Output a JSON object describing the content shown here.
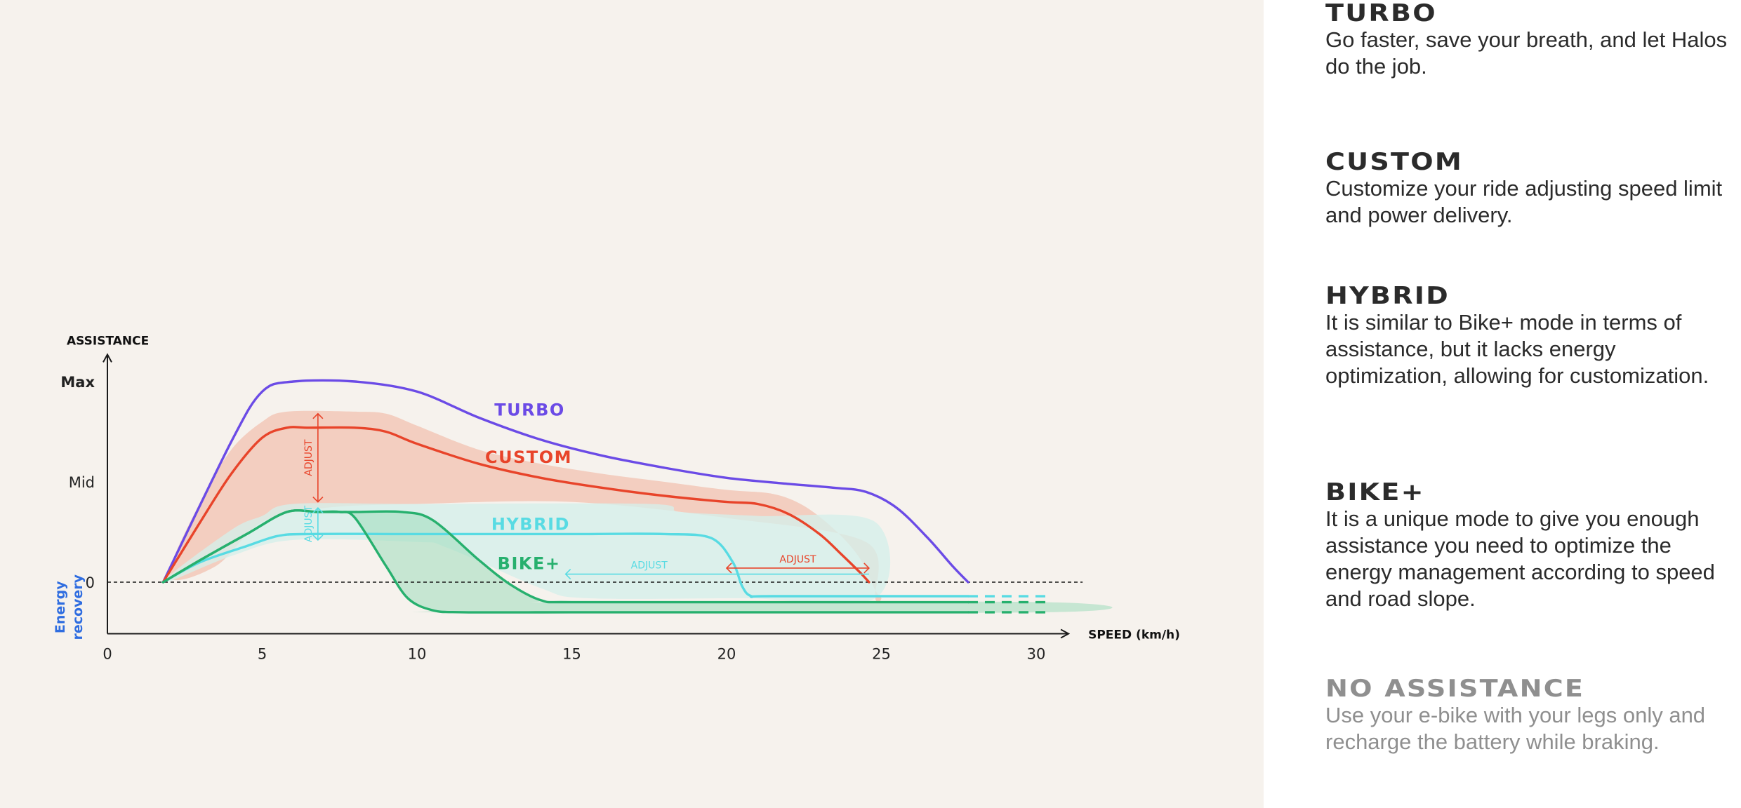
{
  "chart_data": {
    "type": "line",
    "title": "",
    "xlabel": "SPEED (km/h)",
    "ylabel": "ASSISTANCE",
    "xlim": [
      0,
      31
    ],
    "x_ticks": [
      0,
      5,
      10,
      15,
      20,
      25,
      30
    ],
    "x_tick_labels": [
      "0",
      "5",
      "10",
      "15",
      "20",
      "25",
      "30"
    ],
    "y_ticks": [
      {
        "label": "Max",
        "value": 100
      },
      {
        "label": "Mid",
        "value": 50
      },
      {
        "label": "0",
        "value": 0
      }
    ],
    "ylim": [
      -25,
      110
    ],
    "zero_line": "dashed",
    "energy_label_line1": "Energy",
    "energy_label_line2": "recovery",
    "colors": {
      "turbo": "#6b4be6",
      "custom": "#e8442a",
      "custom_band": "#f3c4b4",
      "hybrid": "#58dbe3",
      "hybrid_band": "#d5efeb",
      "bike_plus": "#27b06e",
      "bike_band": "#9fdcbc",
      "axis": "#1a1a1a",
      "energy": "#2f6de0"
    },
    "series": [
      {
        "name": "TURBO",
        "x": [
          1.8,
          4,
          5,
          6,
          8,
          10,
          12,
          14,
          16,
          18,
          20,
          22,
          23.5,
          24.5,
          25.5,
          26.5,
          27.3,
          27.8
        ],
        "y": [
          0,
          70,
          95,
          100,
          100,
          95,
          82,
          71,
          63,
          57,
          52,
          49,
          47,
          45,
          37,
          22,
          8,
          0
        ]
      },
      {
        "name": "CUSTOM",
        "x": [
          1.8,
          3,
          4,
          5,
          5.8,
          6.5,
          8,
          9,
          10,
          12,
          14,
          16,
          18,
          20,
          21,
          22,
          23,
          23.7,
          24.3,
          24.6
        ],
        "y": [
          0,
          30,
          54,
          72,
          77,
          77,
          77,
          75,
          69,
          59,
          52,
          47,
          43,
          40,
          39,
          34,
          24,
          14,
          5,
          0
        ]
      },
      {
        "name": "HYBRID",
        "x": [
          1.8,
          3,
          4.5,
          5.5,
          6.5,
          10,
          15,
          18,
          19.5,
          20.2,
          20.5,
          20.8,
          21.5,
          27.8
        ],
        "y": [
          0,
          10,
          18,
          23,
          24,
          24,
          24,
          24,
          22,
          10,
          -2,
          -7,
          -7,
          -7
        ]
      },
      {
        "name": "BIKE+ (upper)",
        "x": [
          1.8,
          3,
          4.5,
          5.8,
          6.8,
          8,
          9.5,
          10.5,
          12,
          13,
          14,
          15,
          20,
          27.8
        ],
        "y": [
          0,
          11,
          24,
          35,
          35,
          35,
          35,
          31,
          11,
          -1,
          -9,
          -10,
          -10,
          -10
        ]
      },
      {
        "name": "BIKE+ (lower)",
        "x": [
          1.8,
          3,
          4.5,
          5.8,
          6.8,
          7.5,
          8,
          9,
          9.7,
          10.5,
          11.5,
          15,
          20,
          27.8
        ],
        "y": [
          0,
          11,
          24,
          35,
          35,
          35,
          32,
          8,
          -8,
          -14,
          -15,
          -15,
          -15,
          -15
        ]
      }
    ],
    "series_labels": {
      "turbo": "TURBO",
      "custom": "CUSTOM",
      "hybrid": "HYBRID",
      "bike_plus": "BIKE+"
    },
    "bands": {
      "custom": {
        "x": [
          2.0,
          3,
          4,
          5,
          5.8,
          8,
          9,
          10,
          12,
          14,
          16,
          18,
          20,
          21.5,
          22.5,
          23.5,
          24.3,
          24.8,
          25.0,
          24.8,
          24.5,
          20,
          15,
          10,
          7,
          5,
          3.5
        ],
        "y": [
          3,
          40,
          66,
          80,
          85,
          85,
          84,
          78,
          66,
          59,
          54,
          50,
          46,
          44,
          38,
          26,
          12,
          -4,
          -8,
          -8,
          20,
          32,
          40,
          39,
          37,
          30,
          8
        ]
      },
      "hybrid": {
        "x": [
          1.8,
          4,
          5,
          6,
          10,
          17.5,
          18.5,
          21,
          24.8,
          24.8,
          20.5,
          15.5,
          14,
          11,
          10,
          6,
          4
        ],
        "y": [
          0,
          26,
          33,
          39,
          39,
          39,
          35,
          33,
          30,
          -8,
          -8,
          -8,
          -3,
          17,
          20,
          21,
          13
        ]
      },
      "bike_plus": {
        "x": [
          6.8,
          8,
          9.5,
          10.5,
          12,
          13,
          14,
          15,
          30.4,
          30.4,
          11.5,
          10.5,
          9.7,
          9,
          8,
          7.5
        ],
        "y": [
          35,
          35,
          35,
          31,
          11,
          -1,
          -9,
          -10,
          -10,
          -15,
          -15,
          -14,
          -8,
          8,
          32,
          35
        ]
      }
    },
    "annotations": [
      {
        "text": "ADJUST",
        "series": "custom",
        "orientation": "vertical",
        "x": 6.8,
        "y_from": 40,
        "y_to": 84
      },
      {
        "text": "ADJUST",
        "series": "hybrid",
        "orientation": "vertical",
        "x": 6.8,
        "y_from": 21,
        "y_to": 37
      },
      {
        "text": "ADJUST",
        "series": "hybrid",
        "orientation": "horizontal",
        "y": 4,
        "x_from": 14.8,
        "x_to": 24.6
      },
      {
        "text": "ADJUST",
        "series": "custom",
        "orientation": "horizontal",
        "y": 7,
        "x_from": 20,
        "x_to": 24.6
      }
    ]
  },
  "modes": [
    {
      "title": "TURBO",
      "desc": "Go faster, save your breath, and let Halos do the job."
    },
    {
      "title": "CUSTOM",
      "desc": "Customize your ride adjusting speed limit and power delivery."
    },
    {
      "title": "HYBRID",
      "desc": "It is similar to Bike+ mode in terms of assistance, but it lacks energy optimization, allowing for customization."
    },
    {
      "title": "BIKE+",
      "desc": "It is a unique mode to give you enough assistance you need to optimize the energy management according to speed and road slope."
    },
    {
      "title": "NO ASSISTANCE",
      "desc": "Use your e-bike with your legs only and recharge the battery while braking."
    }
  ]
}
